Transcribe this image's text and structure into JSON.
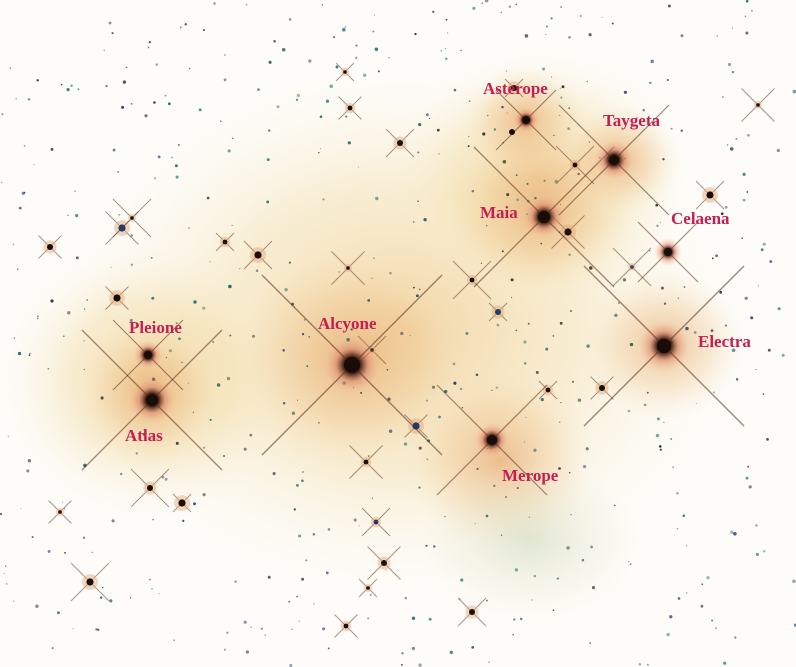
{
  "image": {
    "subject": "Pleiades star cluster (M45), inverted-color astrophoto",
    "palette": {
      "background": "#fdfcf8",
      "nebula": "#f2d79a",
      "nebula_core": "#e9b879",
      "star_core": "#1a0d08",
      "star_halo": "#d98a6a",
      "label": "#c41e52",
      "field_star_teal": "#1f6a6a",
      "field_star_blue": "#1e3a6e"
    }
  },
  "labels": {
    "asterope": "Asterope",
    "taygeta": "Taygeta",
    "maia": "Maia",
    "celaena": "Celaena",
    "pleione": "Pleione",
    "alcyone": "Alcyone",
    "electra": "Electra",
    "atlas": "Atlas",
    "merope": "Merope"
  }
}
